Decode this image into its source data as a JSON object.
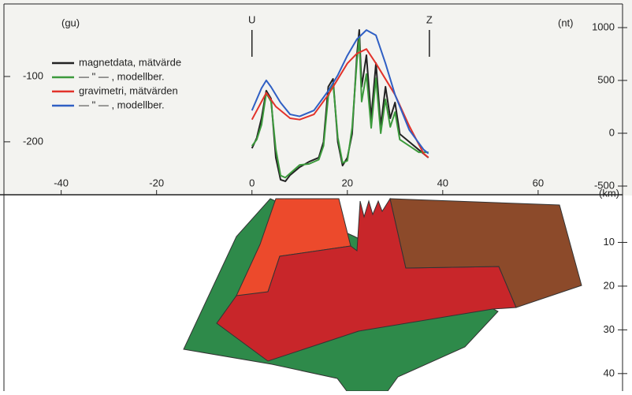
{
  "chart_data": {
    "type": "line",
    "xlim": [
      -52,
      77.7
    ],
    "xticks": [
      -40,
      -20,
      0,
      20,
      40,
      60
    ],
    "ylim": [
      -281,
      11
    ],
    "yticks": [
      -100,
      -200
    ],
    "y2lim": [
      -582,
      1224
    ],
    "y2ticks": [
      1000,
      500,
      0,
      -500
    ],
    "left_unit": "(gu)",
    "right_unit": "(nt)",
    "markers": [
      {
        "label": "U",
        "x": 0
      },
      {
        "label": "Z",
        "x": 37.2
      }
    ],
    "depth_lim": [
      0,
      44
    ],
    "depth_ticks": [
      10,
      20,
      30,
      40
    ],
    "depth_label": "(km)",
    "series": [
      {
        "name": "magnetdata, mätvärde",
        "color": "#222222",
        "axis": "y2",
        "x": [
          0,
          1,
          2,
          3,
          4,
          5,
          6,
          7,
          8,
          10,
          12,
          14,
          15,
          16,
          17,
          18,
          19,
          20,
          21,
          22,
          22.5,
          23,
          24,
          25,
          26,
          27,
          28,
          29,
          30,
          31,
          33,
          35,
          37
        ],
        "values": [
          -142,
          -45,
          142,
          403,
          328,
          -231,
          -440,
          -455,
          -396,
          -321,
          -269,
          -231,
          -82,
          440,
          515,
          -82,
          -306,
          -231,
          -7,
          739,
          978,
          440,
          739,
          142,
          664,
          67,
          440,
          142,
          291,
          -7,
          -82,
          -157,
          -231
        ]
      },
      {
        "name": "— \" — , modellber.",
        "color": "#3c9a3c",
        "axis": "y2",
        "x": [
          0,
          1,
          2,
          3,
          4,
          5,
          6,
          7,
          8,
          10,
          12,
          14,
          15,
          16,
          17,
          18,
          19,
          20,
          21,
          22,
          22.5,
          23,
          24,
          25,
          26,
          27,
          28,
          29,
          30,
          31,
          33,
          35,
          37
        ],
        "values": [
          -120,
          -60,
          80,
          380,
          300,
          -150,
          -400,
          -420,
          -380,
          -300,
          -290,
          -250,
          -120,
          350,
          480,
          -40,
          -280,
          -260,
          50,
          680,
          900,
          300,
          560,
          50,
          520,
          0,
          320,
          60,
          200,
          -60,
          -120,
          -180,
          -180
        ]
      },
      {
        "name": "gravimetri, mätvärden",
        "color": "#e2322a",
        "x": [
          0,
          3,
          5,
          8,
          10,
          13,
          16,
          18,
          20,
          22,
          24,
          26,
          28,
          30,
          33,
          36,
          37
        ],
        "values": [
          -166,
          -125,
          -146,
          -164,
          -166,
          -158,
          -128,
          -104,
          -80,
          -65,
          -58,
          -80,
          -104,
          -128,
          -176,
          -218,
          -224
        ]
      },
      {
        "name": "— \" — , modellber.",
        "color": "#2f5fc4",
        "x": [
          0,
          2,
          3,
          4,
          6,
          8,
          10,
          13,
          16,
          18,
          20,
          22,
          24,
          26,
          28,
          30,
          33,
          36,
          37
        ],
        "values": [
          -152,
          -118,
          -106,
          -116,
          -140,
          -158,
          -161,
          -152,
          -122,
          -98,
          -68,
          -43,
          -29,
          -37,
          -80,
          -128,
          -182,
          -212,
          -218
        ]
      }
    ]
  }
}
